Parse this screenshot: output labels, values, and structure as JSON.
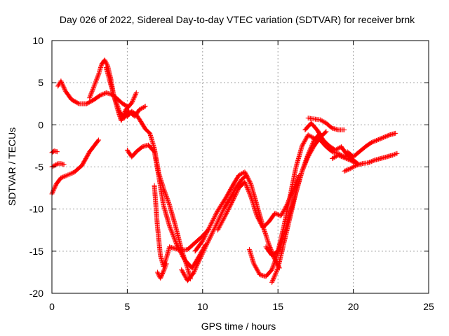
{
  "chart_data": {
    "type": "scatter",
    "title": "Day 026 of 2022, Sidereal Day-to-day VTEC variation (SDTVAR) for receiver brnk",
    "xlabel": "GPS time / hours",
    "ylabel": "SDTVAR / TECUs",
    "xlim": [
      0,
      25
    ],
    "ylim": [
      -20,
      10
    ],
    "x_ticks": [
      0,
      5,
      10,
      15,
      20,
      25
    ],
    "y_ticks": [
      -20,
      -15,
      -10,
      -5,
      0,
      5,
      10
    ],
    "x_tick_labels": [
      "0",
      "5",
      "10",
      "15",
      "20",
      "25"
    ],
    "y_tick_labels": [
      "-20",
      "-15",
      "-10",
      "-5",
      "0",
      "5",
      "10"
    ],
    "grid": true,
    "marker": "+",
    "color": "#ff0000",
    "series": [
      {
        "x": [
          0.0,
          0.3,
          0.6,
          1.0,
          1.5,
          2.0,
          2.5,
          2.8,
          3.1
        ],
        "y": [
          -8.2,
          -7.0,
          -6.3,
          -6.0,
          -5.6,
          -4.8,
          -3.2,
          -2.5,
          -1.8
        ]
      },
      {
        "x": [
          0.0,
          0.2,
          0.4,
          0.6,
          0.8
        ],
        "y": [
          -5.0,
          -4.8,
          -4.6,
          -4.6,
          -4.7
        ]
      },
      {
        "x": [
          0.0,
          0.15,
          0.35
        ],
        "y": [
          -3.3,
          -3.1,
          -3.2
        ]
      },
      {
        "x": [
          0.4,
          0.6,
          0.9,
          1.3,
          1.8,
          2.3,
          2.8,
          3.2,
          3.6,
          4.0,
          4.4,
          4.7,
          5.0
        ],
        "y": [
          4.6,
          5.2,
          4.0,
          3.0,
          2.5,
          2.5,
          3.0,
          3.5,
          3.8,
          3.6,
          3.0,
          2.5,
          2.2
        ]
      },
      {
        "x": [
          2.5,
          2.8,
          3.1,
          3.3,
          3.5,
          3.7,
          3.9,
          4.1,
          4.4,
          4.6,
          4.9,
          5.3,
          5.6
        ],
        "y": [
          3.2,
          4.6,
          6.0,
          7.2,
          7.7,
          7.0,
          5.5,
          3.5,
          1.6,
          0.5,
          1.8,
          2.6,
          3.8
        ]
      },
      {
        "x": [
          3.6,
          3.9,
          4.2,
          4.5,
          4.8,
          5.1,
          5.5,
          5.8,
          6.2
        ],
        "y": [
          6.8,
          4.8,
          3.0,
          1.5,
          0.8,
          1.6,
          1.0,
          1.8,
          2.2
        ]
      },
      {
        "x": [
          5.0,
          5.3,
          5.6,
          5.9,
          6.2,
          6.5,
          6.8,
          7.1,
          7.4,
          7.8,
          8.2,
          8.6,
          9.0,
          9.2
        ],
        "y": [
          1.0,
          1.6,
          1.2,
          0.4,
          -0.5,
          -1.0,
          -2.8,
          -5.8,
          -7.5,
          -9.5,
          -12.0,
          -14.8,
          -17.0,
          -18.3
        ]
      },
      {
        "x": [
          5.0,
          5.3,
          5.6,
          6.0,
          6.4,
          6.8,
          7.1,
          7.4,
          7.8,
          8.3,
          8.8,
          9.3,
          9.8,
          10.2
        ],
        "y": [
          -3.0,
          -3.8,
          -3.2,
          -2.6,
          -2.4,
          -3.2,
          -6.2,
          -9.5,
          -12.0,
          -14.3,
          -16.0,
          -17.0,
          -15.5,
          -14.2
        ]
      },
      {
        "x": [
          6.8,
          7.0,
          7.2,
          7.4,
          7.6,
          7.8,
          8.2,
          8.6,
          9.0,
          9.5,
          10.0,
          10.4
        ],
        "y": [
          -7.2,
          -12.0,
          -15.5,
          -16.8,
          -15.8,
          -14.5,
          -14.7,
          -14.9,
          -14.8,
          -14.0,
          -13.2,
          -12.4
        ]
      },
      {
        "x": [
          7.0,
          7.2,
          7.4,
          7.6
        ],
        "y": [
          -17.5,
          -18.2,
          -17.4,
          -16.5
        ]
      },
      {
        "x": [
          8.6,
          9.0,
          9.4,
          9.8,
          10.2,
          10.6,
          11.0,
          11.4,
          11.8,
          12.2,
          12.6,
          12.9
        ],
        "y": [
          -17.2,
          -18.5,
          -17.6,
          -16.0,
          -14.5,
          -13.0,
          -11.5,
          -10.0,
          -8.8,
          -7.5,
          -6.5,
          -6.0
        ]
      },
      {
        "x": [
          9.5,
          10.0,
          10.5,
          11.0,
          11.5,
          12.0,
          12.4,
          12.8,
          13.2,
          13.6,
          14.0,
          14.4,
          14.8,
          15.1
        ],
        "y": [
          -15.0,
          -13.8,
          -12.0,
          -10.2,
          -8.8,
          -7.2,
          -6.0,
          -5.6,
          -7.0,
          -9.5,
          -12.0,
          -14.2,
          -16.0,
          -17.0
        ]
      },
      {
        "x": [
          11.0,
          11.5,
          12.0,
          12.4,
          12.8,
          13.2,
          13.6,
          14.0,
          14.4,
          14.8,
          15.2,
          15.6,
          16.0,
          16.4
        ],
        "y": [
          -12.5,
          -10.8,
          -9.0,
          -7.5,
          -6.8,
          -8.5,
          -10.8,
          -12.2,
          -11.5,
          -10.5,
          -10.8,
          -9.5,
          -7.8,
          -6.0
        ]
      },
      {
        "x": [
          13.1,
          13.4,
          13.8,
          14.2,
          14.6,
          15.0,
          15.4,
          15.8,
          16.2,
          16.6,
          17.0,
          17.4,
          17.8
        ],
        "y": [
          -14.8,
          -16.5,
          -17.8,
          -18.0,
          -17.2,
          -15.2,
          -13.0,
          -10.5,
          -8.0,
          -5.5,
          -3.5,
          -1.8,
          -1.0
        ]
      },
      {
        "x": [
          14.6,
          15.0,
          15.4,
          15.8,
          16.2,
          16.6,
          17.0,
          17.4,
          17.8,
          18.2
        ],
        "y": [
          -18.7,
          -17.0,
          -14.0,
          -11.0,
          -8.0,
          -5.5,
          -3.8,
          -2.5,
          -1.5,
          -0.8
        ]
      },
      {
        "x": [
          14.2,
          14.6,
          15.0,
          15.4,
          15.8,
          16.2,
          16.6,
          17.0,
          17.4,
          17.8,
          18.2,
          18.6,
          19.0,
          19.4,
          19.8
        ],
        "y": [
          -14.5,
          -15.5,
          -15.0,
          -12.0,
          -8.5,
          -5.0,
          -2.5,
          -1.2,
          -1.6,
          -1.8,
          -2.6,
          -3.2,
          -3.4,
          -3.8,
          -3.5
        ]
      },
      {
        "x": [
          17.0,
          17.4,
          17.8,
          18.2,
          18.6,
          19.0,
          19.4
        ],
        "y": [
          0.8,
          0.7,
          0.6,
          0.2,
          -0.4,
          -0.6,
          -0.6
        ]
      },
      {
        "x": [
          16.8,
          17.2,
          17.6,
          18.0,
          18.4,
          18.8,
          19.2,
          19.6,
          20.0,
          20.3
        ],
        "y": [
          -0.6,
          0.2,
          -0.6,
          -1.8,
          -2.5,
          -3.0,
          -2.6,
          -3.6,
          -4.2,
          -4.6
        ]
      },
      {
        "x": [
          19.4,
          19.8,
          20.2,
          20.6,
          21.0,
          21.4,
          21.8,
          22.2,
          22.6,
          22.9
        ],
        "y": [
          -5.5,
          -5.2,
          -4.8,
          -4.6,
          -4.5,
          -4.2,
          -4.0,
          -3.8,
          -3.6,
          -3.4
        ]
      },
      {
        "x": [
          19.6,
          20.0,
          20.4,
          20.8,
          21.2,
          21.6,
          22.0,
          22.4,
          22.8
        ],
        "y": [
          -3.2,
          -3.8,
          -3.2,
          -2.6,
          -2.1,
          -1.8,
          -1.5,
          -1.2,
          -1.0
        ]
      },
      {
        "x": [
          18.6,
          19.0,
          19.4,
          19.8,
          20.2
        ],
        "y": [
          -4.0,
          -3.6,
          -3.9,
          -4.2,
          -4.6
        ]
      }
    ]
  }
}
